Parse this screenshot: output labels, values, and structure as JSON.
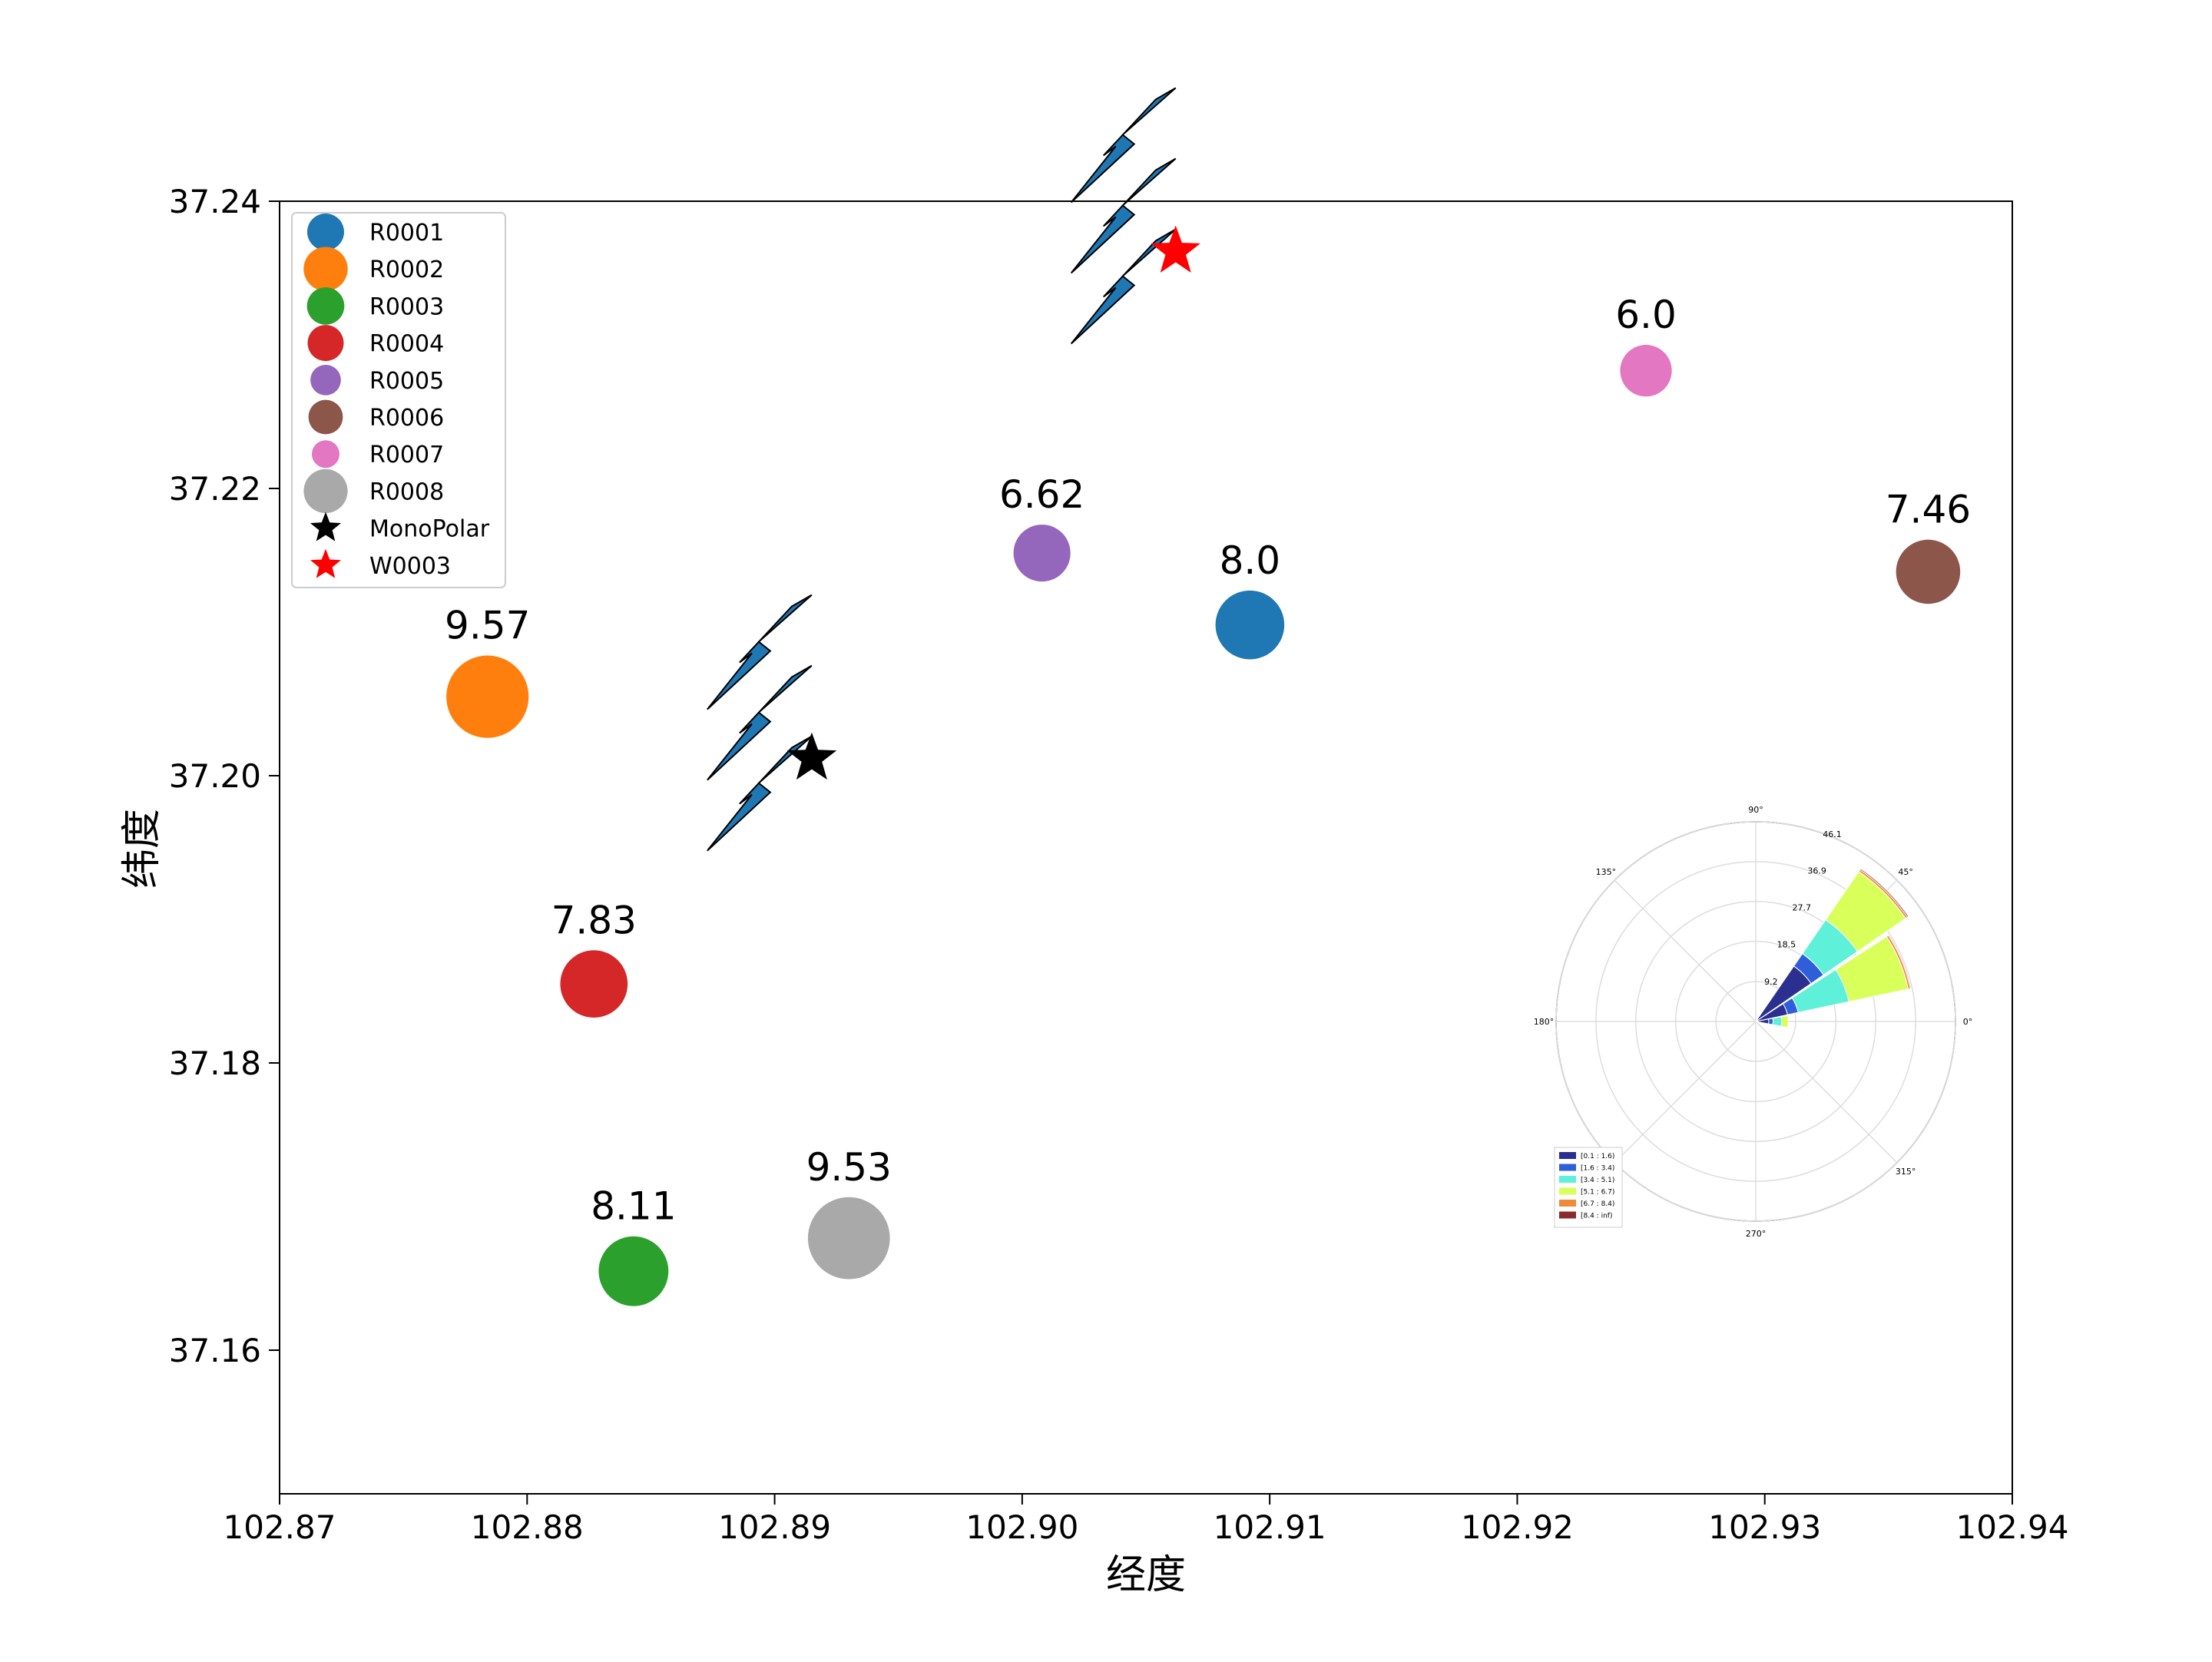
{
  "chart_data": {
    "type": "scatter",
    "xlabel": "经度",
    "ylabel": "纬度",
    "xlim": [
      102.87,
      102.94
    ],
    "ylim": [
      37.15,
      37.24
    ],
    "x_ticks": [
      "102.87",
      "102.88",
      "102.89",
      "102.90",
      "102.91",
      "102.92",
      "102.93",
      "102.94"
    ],
    "y_ticks": [
      "37.16",
      "37.18",
      "37.20",
      "37.22",
      "37.24"
    ],
    "grid": false,
    "legend_position": "top-left",
    "series": [
      {
        "name": "R0001",
        "x": 102.9092,
        "y": 37.2105,
        "value_label": "8.0",
        "color": "#1f77b4"
      },
      {
        "name": "R0002",
        "x": 102.8784,
        "y": 37.2055,
        "value_label": "9.57",
        "color": "#ff7f0e"
      },
      {
        "name": "R0003",
        "x": 102.8843,
        "y": 37.1655,
        "value_label": "8.11",
        "color": "#2ca02c"
      },
      {
        "name": "R0004",
        "x": 102.8827,
        "y": 37.1855,
        "value_label": "7.83",
        "color": "#d62728"
      },
      {
        "name": "R0005",
        "x": 102.9008,
        "y": 37.2155,
        "value_label": "6.62",
        "color": "#9467bd"
      },
      {
        "name": "R0006",
        "x": 102.9366,
        "y": 37.2142,
        "value_label": "7.46",
        "color": "#8c564b"
      },
      {
        "name": "R0007",
        "x": 102.9252,
        "y": 37.2282,
        "value_label": "6.0",
        "color": "#e377c2"
      },
      {
        "name": "R0008",
        "x": 102.893,
        "y": 37.1678,
        "value_label": "9.53",
        "color": "#a9a9a9"
      },
      {
        "name": "MonoPolar",
        "x": 102.8915,
        "y": 37.2012,
        "marker": "star",
        "color": "#000000"
      },
      {
        "name": "W0003",
        "x": 102.9062,
        "y": 37.2365,
        "marker": "star",
        "color": "#ff0000"
      }
    ],
    "wind_arrows": [
      {
        "anchor": "MonoPolar",
        "direction": "southwest",
        "count": 3,
        "color": "#1f77b4"
      },
      {
        "anchor": "W0003",
        "direction": "southwest",
        "count": 3,
        "color": "#1f77b4"
      }
    ],
    "windrose_inset": {
      "type": "windrose",
      "angle_labels": [
        "0°",
        "45°",
        "90°",
        "135°",
        "180°",
        "270°",
        "315°"
      ],
      "radial_labels": [
        "9.2",
        "18.5",
        "27.7",
        "36.9",
        "46.1"
      ],
      "rmax": 46.1,
      "bins": [
        {
          "label": "[0.1 : 1.6)",
          "color": "#2b2f8f"
        },
        {
          "label": "[1.6 : 3.4)",
          "color": "#2f5fd8"
        },
        {
          "label": "[3.4 : 5.1)",
          "color": "#5ef0d8"
        },
        {
          "label": "[5.1 : 6.7)",
          "color": "#d8ff5a"
        },
        {
          "label": "[6.7 : 8.4)",
          "color": "#f08a3a"
        },
        {
          "label": "[8.4 : inf)",
          "color": "#8a2a2a"
        }
      ],
      "petals": [
        {
          "direction_deg": 45,
          "segments": [
            15.5,
            3.5,
            9.5,
            13.5,
            0.5,
            0.3
          ]
        },
        {
          "direction_deg": 22.5,
          "segments": [
            7.5,
            2.5,
            12.0,
            14.0,
            0.5,
            0.2
          ]
        },
        {
          "direction_deg": 0,
          "segments": [
            3.0,
            1.0,
            2.0,
            1.5,
            0.0,
            0.0
          ]
        }
      ]
    }
  }
}
